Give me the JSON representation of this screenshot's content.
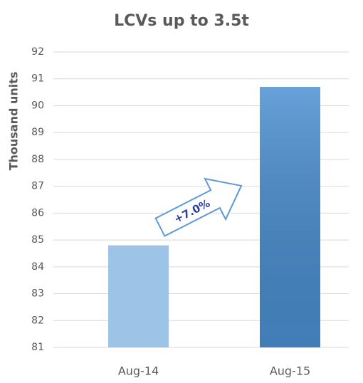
{
  "chart_data": {
    "type": "bar",
    "title": "LCVs up to 3.5t",
    "y_label": "Thousand units",
    "categories": [
      "Aug-14",
      "Aug-15"
    ],
    "values": [
      84.8,
      90.7
    ],
    "colors": [
      "#9dc3e6",
      "#4a8fd1"
    ],
    "ylim": [
      81,
      92
    ],
    "yticks": [
      81,
      82,
      83,
      84,
      85,
      86,
      87,
      88,
      89,
      90,
      91,
      92
    ],
    "grid": true,
    "annotation": "+7.0%"
  }
}
